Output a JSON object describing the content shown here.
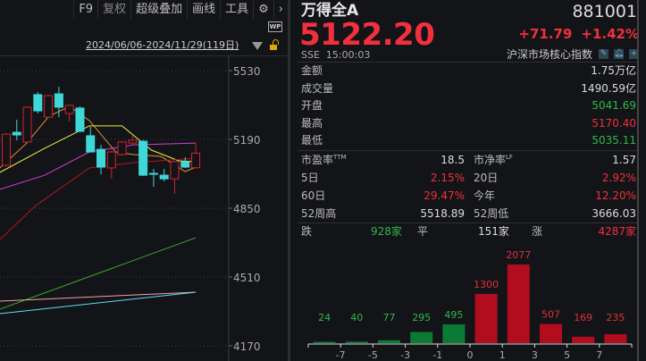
{
  "toolbar": {
    "items": [
      "F9",
      "复权",
      "超级叠加",
      "画线",
      "工具"
    ],
    "settings_icon": "gear-icon",
    "more_icon": "chevron-right-icon",
    "wp_badge": "WP"
  },
  "chart": {
    "date_range": "2024/06/06-2024/11/29(119日)",
    "colors": {
      "up": "#d0232f",
      "down": "#3fd8d8",
      "ma5": "#e89030",
      "ma10": "#f0f040",
      "ma20": "#d040d0",
      "ma60": "#b01820",
      "ma120": "#3aaa2a",
      "ma250": "#f0a0a8",
      "ma_long": "#60e0f0"
    },
    "y_ticks": [
      5530,
      5190,
      4850,
      4510,
      4170
    ],
    "y_range": [
      4150,
      5560
    ],
    "candles": [
      {
        "o": 5062,
        "c": 5216,
        "h": 5220,
        "l": 5058
      },
      {
        "o": 5225,
        "c": 5212,
        "h": 5287,
        "l": 5186
      },
      {
        "o": 5177,
        "c": 5349,
        "h": 5352,
        "l": 5175
      },
      {
        "o": 5411,
        "c": 5331,
        "h": 5424,
        "l": 5318
      },
      {
        "o": 5300,
        "c": 5406,
        "h": 5410,
        "l": 5296
      },
      {
        "o": 5415,
        "c": 5349,
        "h": 5450,
        "l": 5300
      },
      {
        "o": 5318,
        "c": 5358,
        "h": 5362,
        "l": 5278
      },
      {
        "o": 5345,
        "c": 5230,
        "h": 5353,
        "l": 5225
      },
      {
        "o": 5208,
        "c": 5128,
        "h": 5252,
        "l": 5125
      },
      {
        "o": 5141,
        "c": 5053,
        "h": 5163,
        "l": 5018
      },
      {
        "o": 5049,
        "c": 5128,
        "h": 5132,
        "l": 4996
      },
      {
        "o": 5115,
        "c": 5177,
        "h": 5181,
        "l": 5110
      },
      {
        "o": 5172,
        "c": 5186,
        "h": 5208,
        "l": 5159
      },
      {
        "o": 5181,
        "c": 5013,
        "h": 5186,
        "l": 5010
      },
      {
        "o": 5022,
        "c": 5020,
        "h": 5044,
        "l": 4956
      },
      {
        "o": 5013,
        "c": 4995,
        "h": 5044,
        "l": 4982
      },
      {
        "o": 4995,
        "c": 5080,
        "h": 5084,
        "l": 4921
      },
      {
        "o": 5080,
        "c": 5053,
        "h": 5102,
        "l": 5048
      },
      {
        "o": 5050,
        "c": 5122,
        "h": 5172,
        "l": 5045
      }
    ],
    "ma_lines": [
      {
        "key": "ma5",
        "points": [
          [
            -0.6,
            5049
          ],
          [
            1.95,
            5172
          ],
          [
            4.07,
            5305
          ],
          [
            6.03,
            5353
          ],
          [
            7.9,
            5283
          ],
          [
            10.4,
            5128
          ],
          [
            12.1,
            5115
          ],
          [
            14.7,
            5106
          ],
          [
            17,
            5031
          ],
          [
            18,
            5053
          ]
        ]
      },
      {
        "key": "ma10",
        "points": [
          [
            -0.6,
            5027
          ],
          [
            3.65,
            5146
          ],
          [
            7.9,
            5257
          ],
          [
            11,
            5257
          ],
          [
            13.8,
            5137
          ],
          [
            16.4,
            5084
          ],
          [
            18,
            5080
          ]
        ]
      },
      {
        "key": "ma20",
        "points": [
          [
            -0.6,
            4943
          ],
          [
            3.65,
            5013
          ],
          [
            7.9,
            5128
          ],
          [
            12.1,
            5163
          ],
          [
            18,
            5172
          ]
        ]
      },
      {
        "key": "ma60",
        "points": [
          [
            -0.6,
            4695
          ],
          [
            2.8,
            4863
          ],
          [
            7.9,
            5049
          ],
          [
            12.1,
            5075
          ],
          [
            18,
            5097
          ]
        ]
      },
      {
        "key": "ma120",
        "points": [
          [
            -0.6,
            4351
          ],
          [
            18,
            4704
          ]
        ]
      },
      {
        "key": "ma250",
        "points": [
          [
            -0.6,
            4391
          ],
          [
            18,
            4435
          ]
        ]
      },
      {
        "key": "ma_long",
        "points": [
          [
            -0.6,
            4329
          ],
          [
            18,
            4435
          ]
        ]
      }
    ]
  },
  "quote": {
    "name": "万得全A",
    "code": "881001",
    "price": "5122.20",
    "change": "+71.79",
    "change_pct": "+1.42%",
    "exchange": "SSE",
    "time": "15:00:03",
    "category": "沪深市场核心指数",
    "stats": [
      {
        "k": "金额",
        "v": "1.75万亿",
        "c": ""
      },
      {
        "k": "成交量",
        "v": "1490.59亿",
        "c": ""
      },
      {
        "k": "开盘",
        "v": "5041.69",
        "c": "green"
      },
      {
        "k": "最高",
        "v": "5170.40",
        "c": "red"
      },
      {
        "k": "最低",
        "v": "5035.11",
        "c": "green"
      }
    ],
    "pe_label": "市盈率",
    "pe_sup": "TTM",
    "pe": "18.5",
    "pb_label": "市净率",
    "pb_sup": "LF",
    "pb": "1.57",
    "grid": [
      [
        {
          "k": "5日",
          "v": "2.15%",
          "c": "red"
        },
        {
          "k": "20日",
          "v": "2.92%",
          "c": "red"
        }
      ],
      [
        {
          "k": "60日",
          "v": "29.47%",
          "c": "red"
        },
        {
          "k": "今年",
          "v": "12.20%",
          "c": "red"
        }
      ],
      [
        {
          "k": "52周高",
          "v": "5518.89",
          "c": ""
        },
        {
          "k": "52周低",
          "v": "3666.03",
          "c": ""
        }
      ]
    ],
    "breadth": {
      "down_label": "跌",
      "down": "928家",
      "flat_label": "平",
      "flat": "151家",
      "up_label": "涨",
      "up": "4287家"
    }
  },
  "chart_data": {
    "type": "bar",
    "categories": [
      "<-7",
      "-7~-5",
      "-5~-3",
      "-3~-1",
      "-1~0",
      "0~1",
      "1~3",
      "3~5",
      "5~7",
      ">7"
    ],
    "tick_labels": [
      "-7",
      "-5",
      "-3",
      "-1",
      "0",
      "1",
      "3",
      "5",
      "7"
    ],
    "values": [
      24,
      40,
      77,
      295,
      495,
      1300,
      2077,
      507,
      169,
      235
    ],
    "colors": {
      "down": "#0a7a34",
      "up": "#b10d1e"
    }
  }
}
